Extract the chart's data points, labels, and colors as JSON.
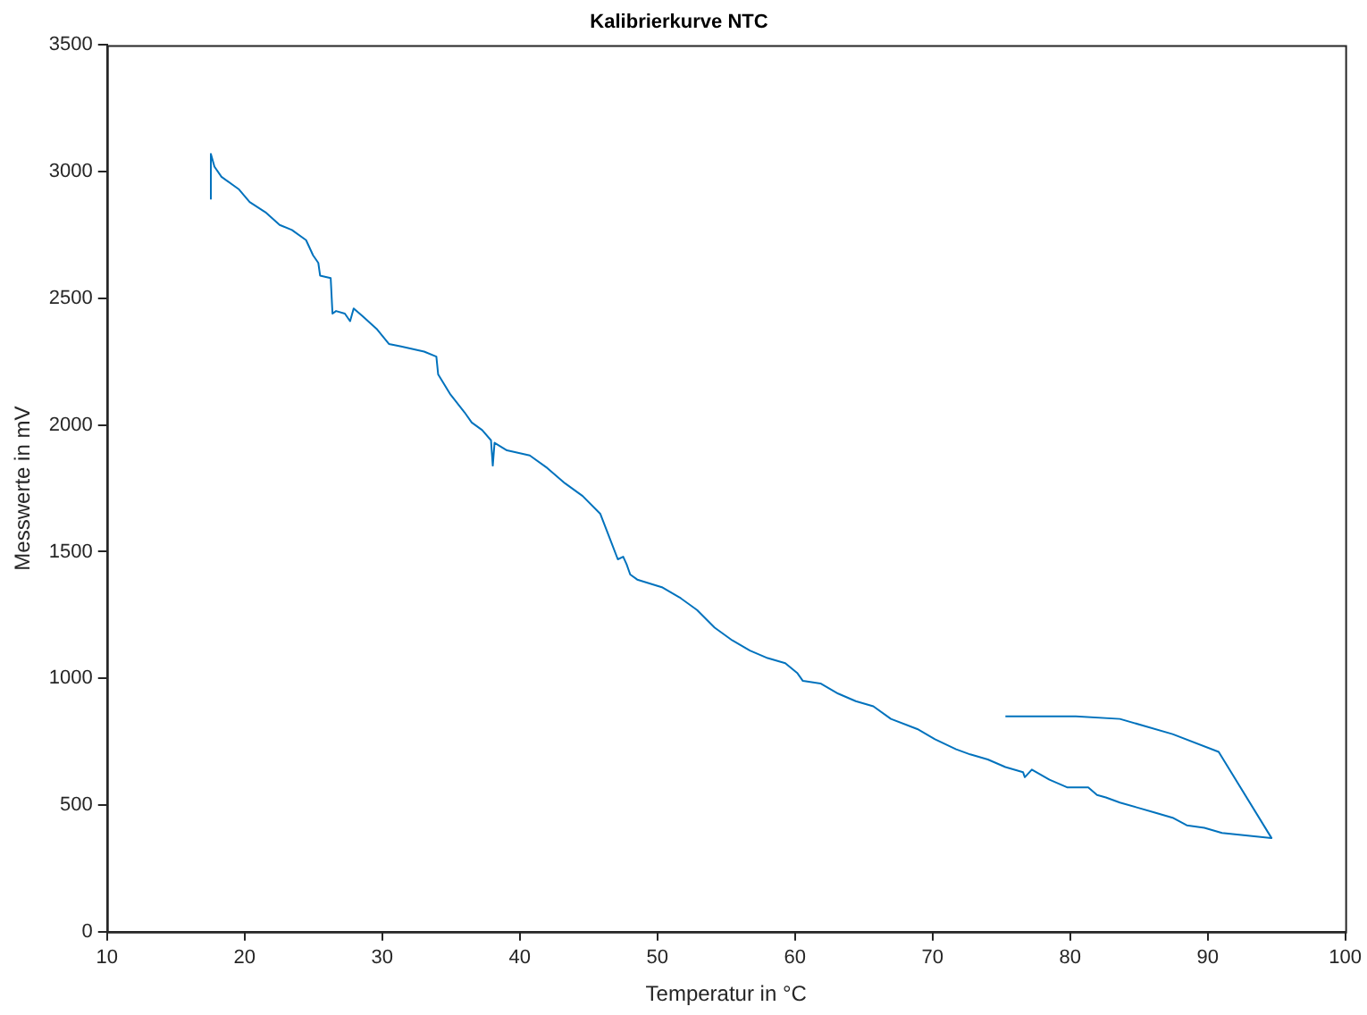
{
  "chart_data": {
    "type": "line",
    "title": "Kalibrierkurve NTC",
    "xlabel": "Temperatur in °C",
    "ylabel": "Messwerte in mV",
    "x": [
      17.55,
      17.55,
      17.81,
      18.32,
      19.6,
      20.37,
      21.52,
      22.55,
      23.44,
      24.47,
      24.98,
      25.36,
      25.49,
      26.26,
      26.39,
      26.65,
      27.29,
      27.67,
      27.93,
      28.57,
      29.59,
      30.49,
      31.38,
      33.05,
      33.94,
      34.07,
      34.97,
      35.99,
      36.51,
      37.27,
      37.91,
      38.04,
      38.17,
      39.07,
      40.73,
      42.01,
      43.29,
      44.57,
      45.85,
      46.49,
      47.13,
      47.52,
      47.77,
      48.03,
      48.54,
      50.33,
      51.61,
      52.89,
      54.17,
      55.45,
      56.73,
      58.02,
      59.3,
      60.19,
      60.58,
      61.86,
      63.14,
      64.42,
      65.7,
      66.98,
      68.9,
      70.18,
      71.72,
      72.74,
      74.02,
      75.3,
      76.58,
      76.71,
      77.22,
      78.5,
      79.78,
      81.32,
      81.96,
      82.6,
      83.62,
      84.9,
      86.17,
      87.45,
      88.48,
      89.76,
      91.04,
      94.64,
      90.8,
      87.45,
      83.62,
      80.42,
      75.3
    ],
    "series": [
      {
        "color": "#0072bd",
        "values": [
          2890,
          3070,
          3020,
          2980,
          2930,
          2880,
          2840,
          2790,
          2770,
          2730,
          2670,
          2640,
          2590,
          2580,
          2440,
          2450,
          2440,
          2410,
          2460,
          2430,
          2380,
          2320,
          2310,
          2290,
          2270,
          2200,
          2120,
          2050,
          2010,
          1980,
          1940,
          1840,
          1930,
          1900,
          1880,
          1830,
          1770,
          1720,
          1650,
          1560,
          1470,
          1480,
          1450,
          1410,
          1390,
          1360,
          1320,
          1270,
          1200,
          1150,
          1110,
          1080,
          1060,
          1020,
          990,
          980,
          940,
          910,
          890,
          840,
          800,
          760,
          720,
          700,
          680,
          650,
          630,
          610,
          640,
          600,
          570,
          570,
          540,
          530,
          510,
          490,
          470,
          450,
          420,
          410,
          390,
          370,
          710,
          780,
          840,
          850,
          850
        ]
      }
    ],
    "xlim": [
      10,
      100
    ],
    "xticks": [
      10,
      20,
      30,
      40,
      50,
      60,
      70,
      80,
      90,
      100
    ],
    "ylim": [
      0,
      3500
    ],
    "yticks": [
      0,
      500,
      1000,
      1500,
      2000,
      2500,
      3000,
      3500
    ],
    "grid": false,
    "legend": false,
    "marker": "none",
    "line_style": "solid"
  }
}
